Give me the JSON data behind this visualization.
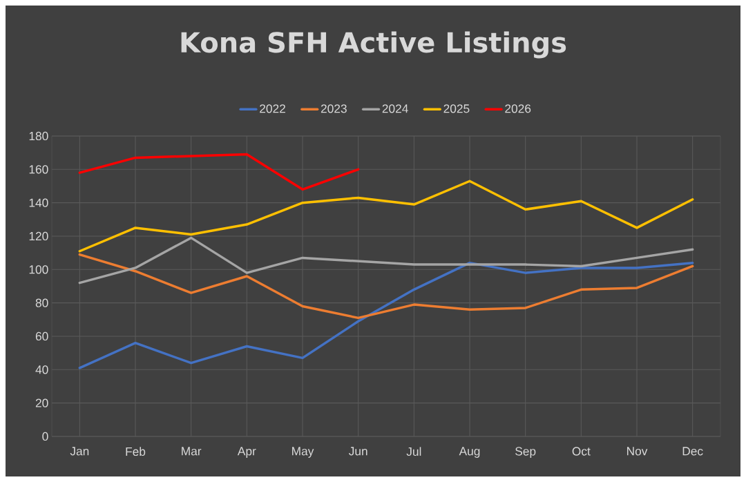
{
  "chart_data": {
    "type": "line",
    "title": "Kona SFH Active Listings",
    "categories": [
      "Jan",
      "Feb",
      "Mar",
      "Apr",
      "May",
      "Jun",
      "Jul",
      "Aug",
      "Sep",
      "Oct",
      "Nov",
      "Dec"
    ],
    "series": [
      {
        "name": "2022",
        "color": "#4472c4",
        "values": [
          41,
          56,
          44,
          54,
          47,
          69,
          88,
          104,
          98,
          101,
          101,
          104
        ]
      },
      {
        "name": "2023",
        "color": "#ed7d31",
        "values": [
          109,
          99,
          86,
          96,
          78,
          71,
          79,
          76,
          77,
          88,
          89,
          102
        ]
      },
      {
        "name": "2024",
        "color": "#a5a5a5",
        "values": [
          92,
          101,
          119,
          98,
          107,
          105,
          103,
          103,
          103,
          102,
          107,
          112
        ]
      },
      {
        "name": "2025",
        "color": "#ffc000",
        "values": [
          111,
          125,
          121,
          127,
          140,
          143,
          139,
          153,
          136,
          141,
          125,
          142
        ]
      },
      {
        "name": "2026",
        "color": "#ff0000",
        "values": [
          158,
          167,
          168,
          169,
          148,
          160,
          null,
          null,
          null,
          null,
          null,
          null
        ]
      }
    ],
    "ylim": [
      0,
      180
    ],
    "yticks": [
      0,
      20,
      40,
      60,
      80,
      100,
      120,
      140,
      160,
      180
    ],
    "grid": true,
    "legend": "top",
    "marker": "none",
    "line_style": "solid"
  }
}
